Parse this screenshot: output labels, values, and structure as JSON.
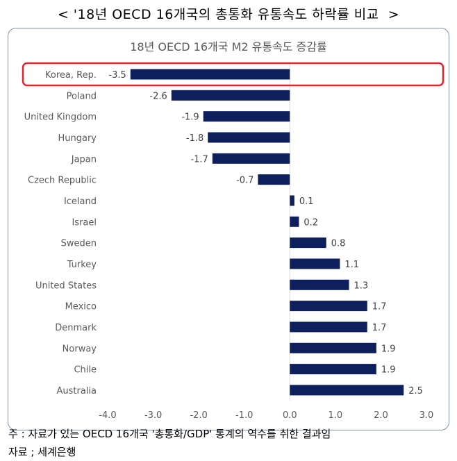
{
  "header": {
    "title": "< '18년 OECD 16개국의 총통화 유통속도 하락률 비교  >"
  },
  "chart_data": {
    "type": "bar",
    "orientation": "horizontal",
    "title": "18년 OECD 16개국 M2 유통속도 증감률",
    "categories": [
      "Korea, Rep.",
      "Poland",
      "United Kingdom",
      "Hungary",
      "Japan",
      "Czech Republic",
      "Iceland",
      "Israel",
      "Sweden",
      "Turkey",
      "United States",
      "Mexico",
      "Denmark",
      "Norway",
      "Chile",
      "Australia"
    ],
    "values": [
      -3.5,
      -2.6,
      -1.9,
      -1.8,
      -1.7,
      -0.7,
      0.1,
      0.2,
      0.8,
      1.1,
      1.3,
      1.7,
      1.7,
      1.9,
      1.9,
      2.5
    ],
    "value_labels": [
      "-3.5",
      "-2.6",
      "-1.9",
      "-1.8",
      "-1.7",
      "-0.7",
      "0.1",
      "0.2",
      "0.8",
      "1.1",
      "1.3",
      "1.7",
      "1.7",
      "1.9",
      "1.9",
      "2.5"
    ],
    "xlim": [
      -4,
      3
    ],
    "xticks": [
      "-4.0",
      "-3.0",
      "-2.0",
      "-1.0",
      "0.0",
      "1.0",
      "2.0",
      "3.0"
    ],
    "grid": false,
    "highlight": "Korea, Rep.",
    "bar_color": "#0d1f5c",
    "highlight_color": "#e0242b"
  },
  "notes": {
    "note": "주 : 자료가 있는 OECD 16개국 '총통화/GDP' 통계의 역수를 취한 결과임",
    "source": "자료 ; 세계은행"
  }
}
